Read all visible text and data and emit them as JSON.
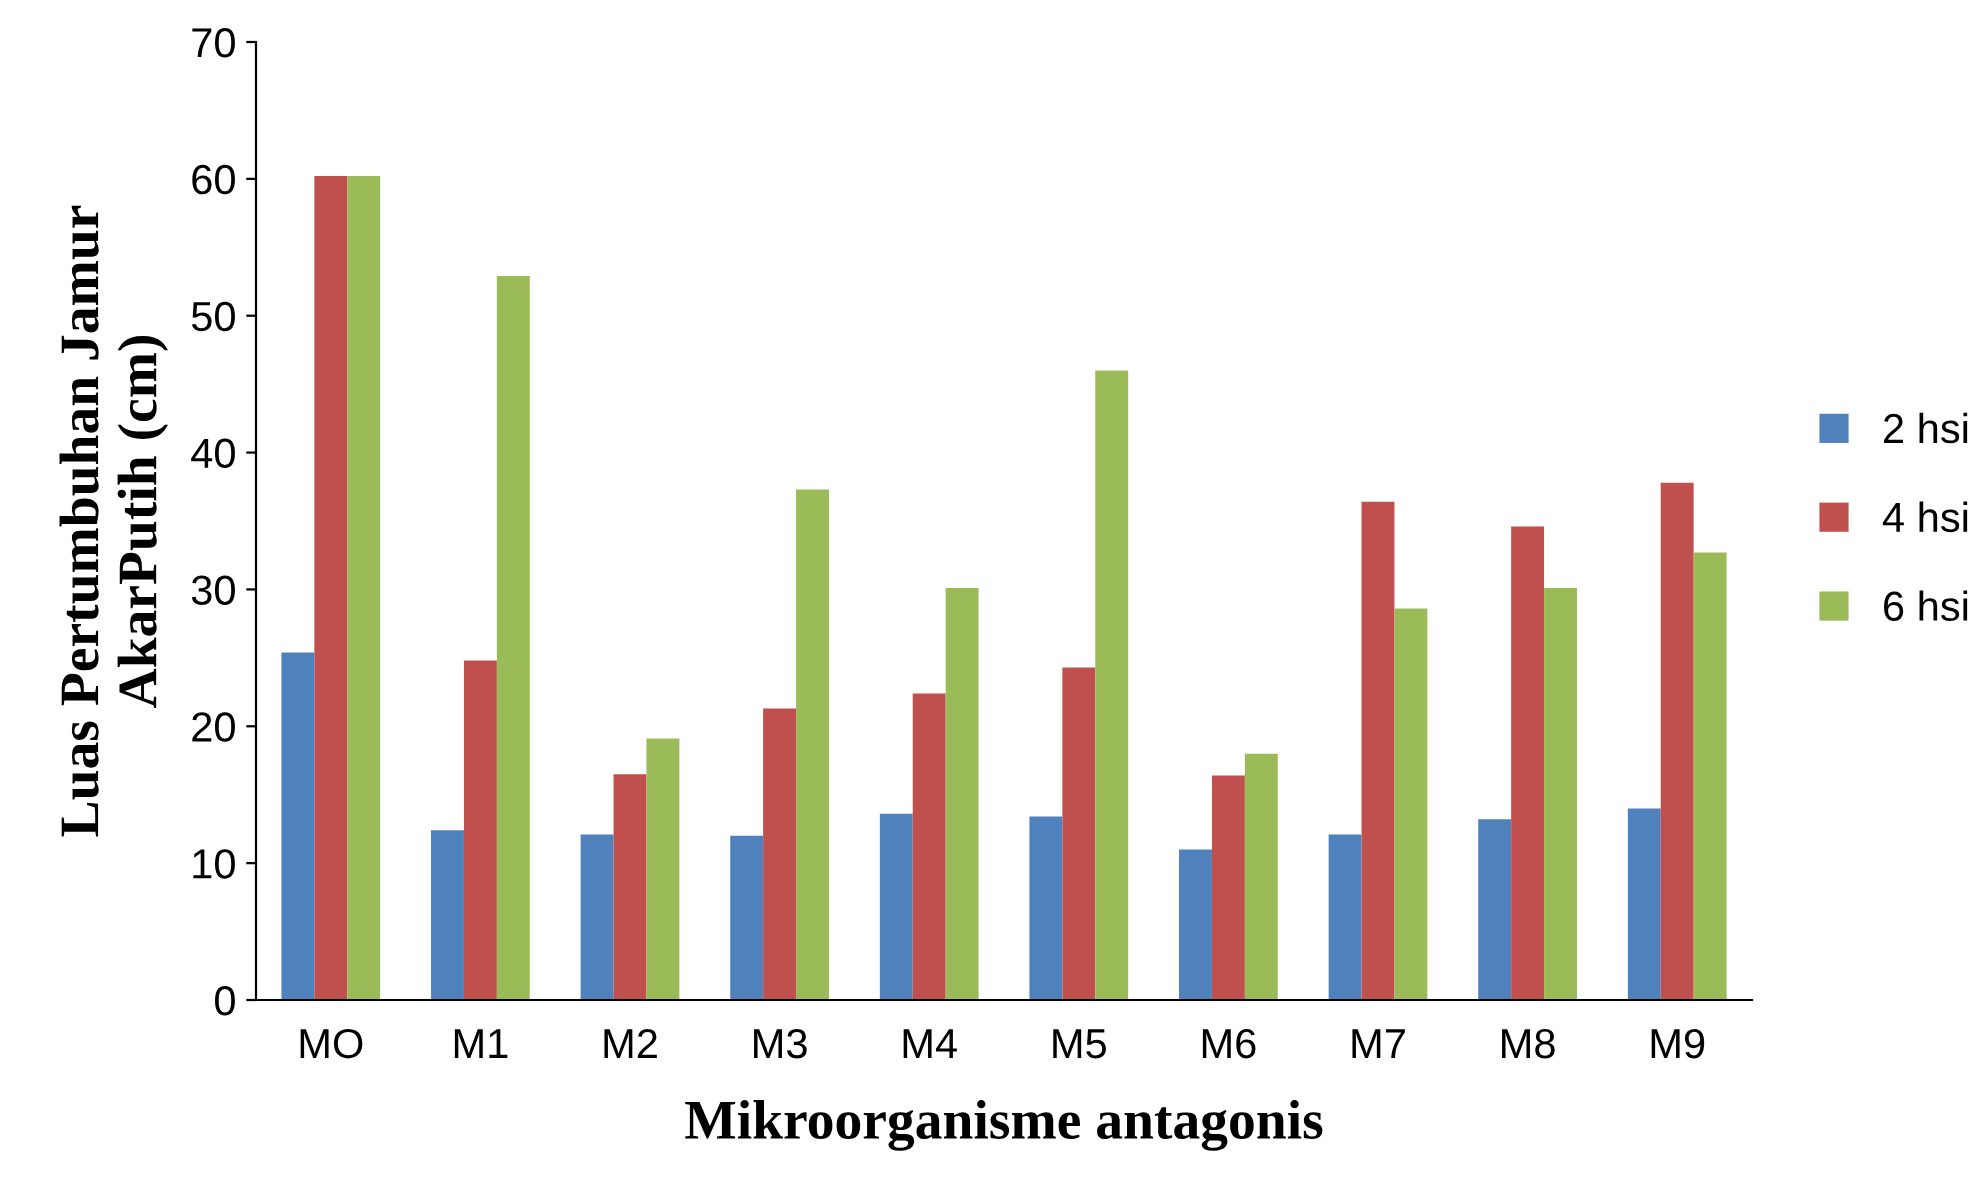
{
  "chart_data": {
    "type": "bar",
    "xlabel": "Mikroorganisme antagonis",
    "ylabel": "Luas Pertumbuhan Jamur\nAkarPutih (cm)",
    "categories": [
      "MO",
      "M1",
      "M2",
      "M3",
      "M4",
      "M5",
      "M6",
      "M7",
      "M8",
      "M9"
    ],
    "series": [
      {
        "name": "2 hsi",
        "color": "#4f81bd",
        "values": [
          25.4,
          12.4,
          12.1,
          12.0,
          13.6,
          13.4,
          11.0,
          12.1,
          13.2,
          14.0
        ]
      },
      {
        "name": "4 hsi",
        "color": "#c0504d",
        "values": [
          60.2,
          24.8,
          16.5,
          21.3,
          22.4,
          24.3,
          16.4,
          36.4,
          34.6,
          37.8
        ]
      },
      {
        "name": "6 hsi",
        "color": "#9bbb59",
        "values": [
          60.2,
          52.9,
          19.1,
          37.3,
          30.1,
          46.0,
          18.0,
          28.6,
          30.1,
          32.7
        ]
      }
    ],
    "ylim": [
      0,
      70
    ],
    "yticks": [
      0,
      10,
      20,
      30,
      40,
      50,
      60,
      70
    ],
    "grid": false,
    "legend": "right"
  }
}
